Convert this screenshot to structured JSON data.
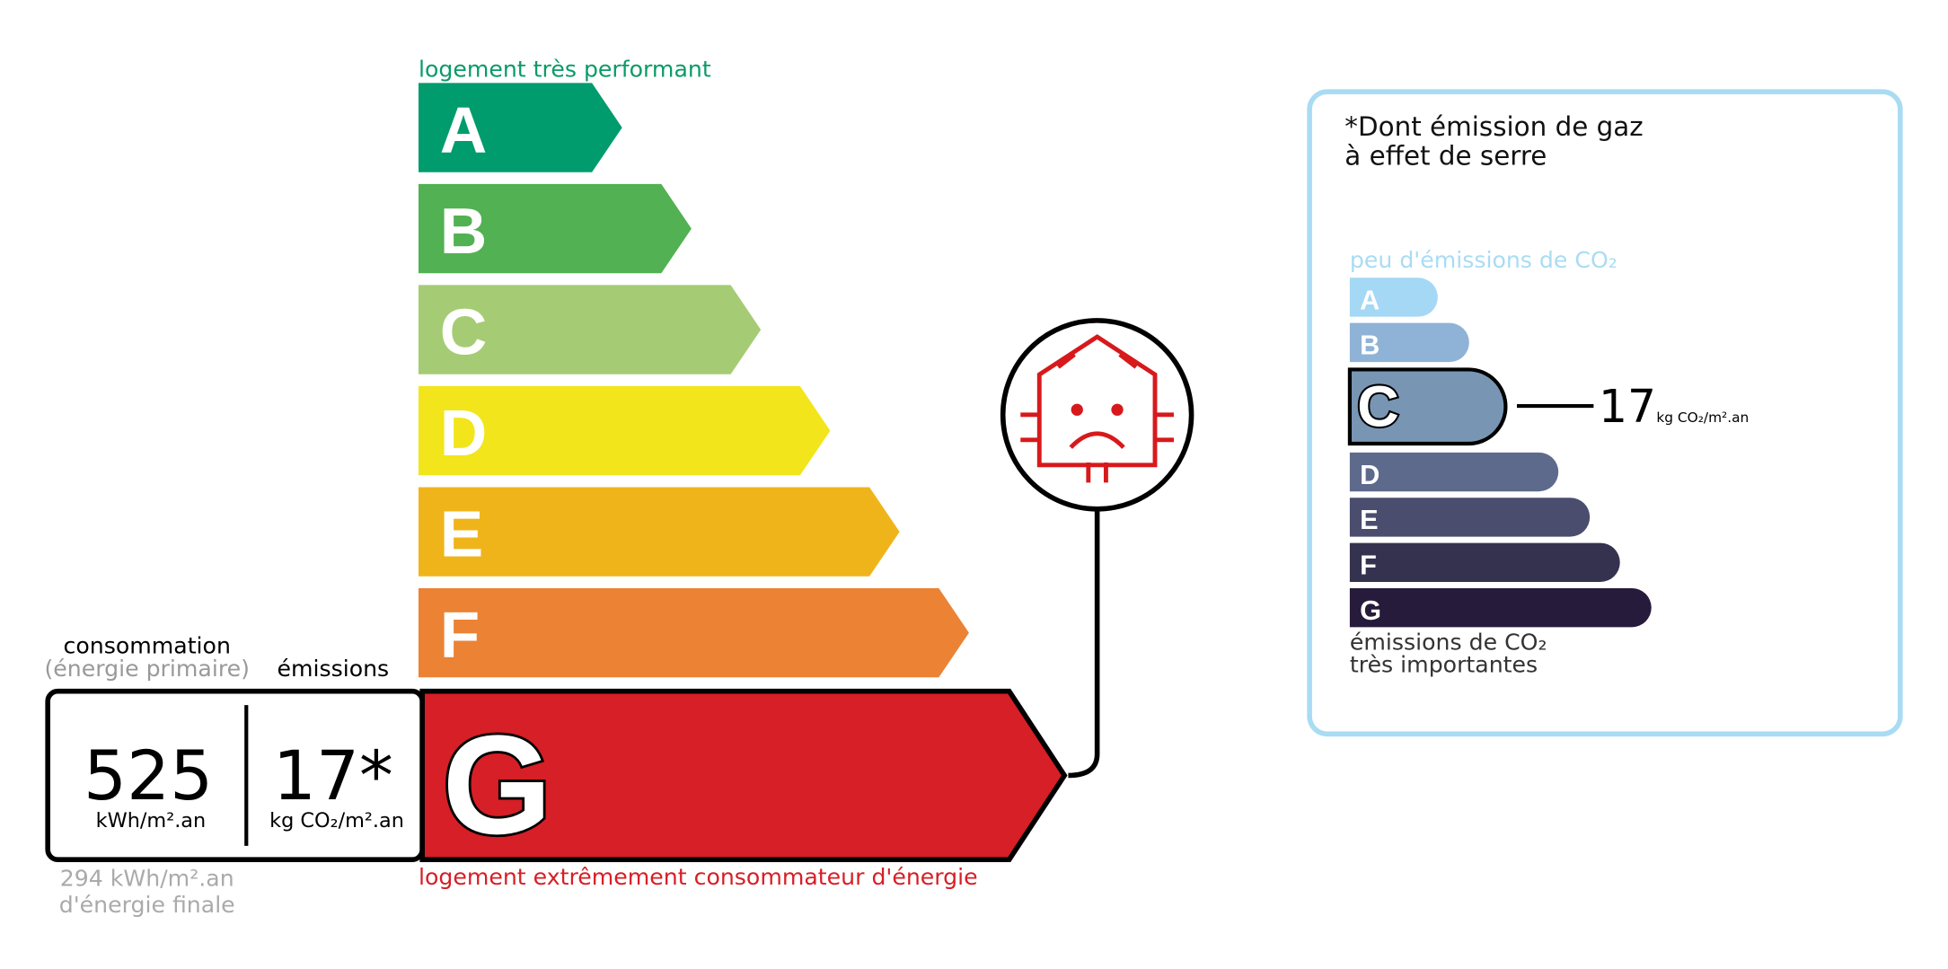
{
  "energy_label": {
    "top_label": "logement très performant",
    "bottom_label": "logement extrêmement consommateur d'énergie",
    "classes": [
      "A",
      "B",
      "C",
      "D",
      "E",
      "F",
      "G"
    ],
    "consumption": {
      "heading": "consommation",
      "subheading": "(énergie primaire)",
      "value": 525,
      "unit": "kWh/m².an"
    },
    "emissions": {
      "heading": "émissions",
      "value": "17*",
      "unit": "kg CO₂/m².an"
    },
    "final_energy": {
      "line1": "294 kWh/m².an",
      "line2": "d'énergie finale"
    }
  },
  "ghg_label": {
    "title_line1": "*Dont émission de gaz",
    "title_line2": "à effet de serre",
    "top_label": "peu d'émissions de CO₂",
    "classes": [
      "A",
      "B",
      "C",
      "D",
      "E",
      "F",
      "G"
    ],
    "value": 17,
    "unit": "kg CO₂/m².an",
    "bottom_line1": "émissions de CO₂",
    "bottom_line2": "très importantes"
  }
}
